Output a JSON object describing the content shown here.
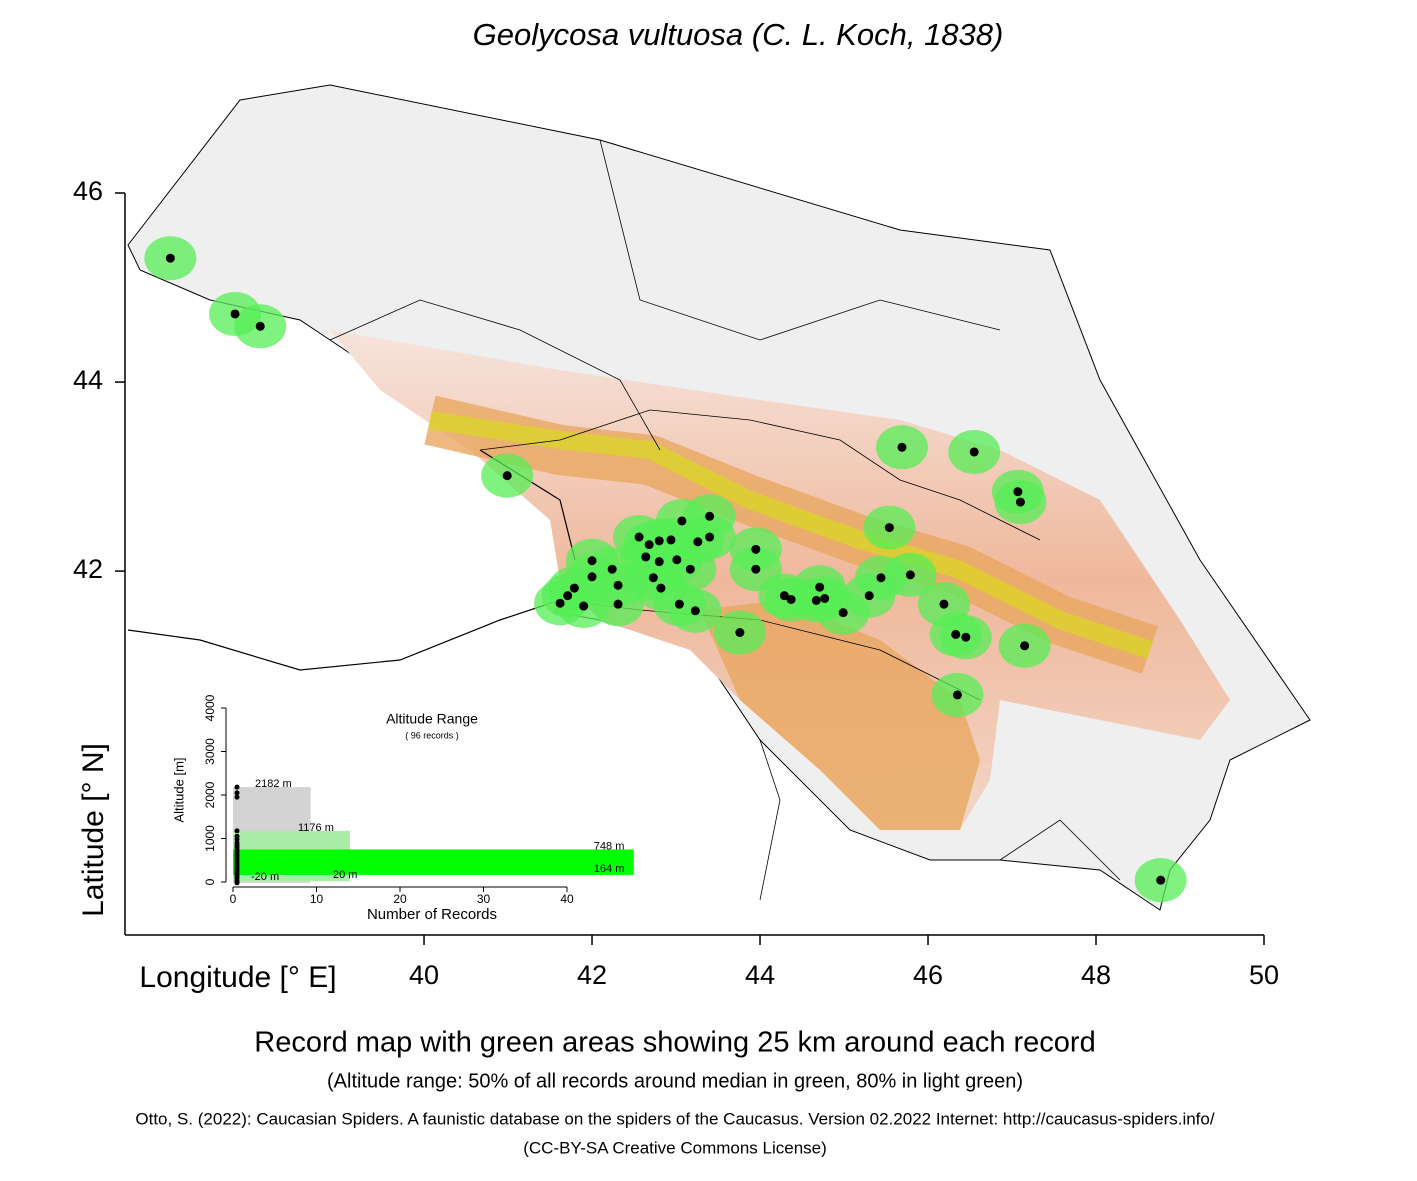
{
  "chart_data": [
    {
      "type": "scatter",
      "title": "Geolycosa vultuosa (C. L. Koch, 1838)",
      "x_label": "Longitude [° E]",
      "y_label": "Latitude [° N]",
      "caption": "Record map with green areas showing 25 km around each record",
      "subcaption": "(Altitude range: 50% of all records around median in green, 80% in light green)",
      "credit": "Otto, S. (2022): Caucasian Spiders. A faunistic database on the spiders of the Caucasus. Version 02.2022 Internet: http://caucasus-spiders.info/",
      "license": "(CC-BY-SA Creative Commons License)",
      "xlim": [
        36.44,
        50
      ],
      "xticks": [
        40,
        42,
        44,
        46,
        48,
        50
      ],
      "ylim": [
        38.15,
        46
      ],
      "yticks": [
        42,
        44,
        46
      ],
      "color": "#000000",
      "buffer_color": "#55ee55",
      "x": [
        36.98,
        37.75,
        38.05,
        40.99,
        45.69,
        46.55,
        47.07,
        47.1,
        45.54,
        43.4,
        43.07,
        42.56,
        42.68,
        42.8,
        42.94,
        43.26,
        43.4,
        42.64,
        42.8,
        43.01,
        42.0,
        42.0,
        42.24,
        43.17,
        43.95,
        43.95,
        42.73,
        42.82,
        42.31,
        41.79,
        41.71,
        41.62,
        41.9,
        42.31,
        43.04,
        43.23,
        43.76,
        44.29,
        44.37,
        44.67,
        44.77,
        44.71,
        44.99,
        45.3,
        45.44,
        45.79,
        46.19,
        46.33,
        46.45,
        47.15,
        46.35,
        48.77
      ],
      "values": [
        45.31,
        44.72,
        44.59,
        43.01,
        43.31,
        43.26,
        42.84,
        42.73,
        42.46,
        42.58,
        42.53,
        42.36,
        42.28,
        42.32,
        42.33,
        42.31,
        42.36,
        42.15,
        42.1,
        42.12,
        42.11,
        41.94,
        42.02,
        42.02,
        42.23,
        42.02,
        41.93,
        41.82,
        41.85,
        41.82,
        41.74,
        41.66,
        41.63,
        41.65,
        41.65,
        41.58,
        41.35,
        41.74,
        41.7,
        41.69,
        41.71,
        41.83,
        41.56,
        41.74,
        41.93,
        41.96,
        41.65,
        41.33,
        41.3,
        41.21,
        40.69,
        38.73
      ]
    },
    {
      "type": "range",
      "title": "Altitude Range",
      "subtitle": "( 96 records )",
      "x_label": "Number of Records",
      "y_label": "Altitude [m]",
      "xlim": [
        0,
        40
      ],
      "xticks": [
        0,
        10,
        20,
        30,
        40
      ],
      "ylim": [
        0,
        4000
      ],
      "yticks": [
        0,
        1000,
        2000,
        3000,
        4000
      ],
      "bars": [
        {
          "low": -20,
          "high": 2182,
          "width": 9.3,
          "color": "#d3d3d3",
          "low_label": "-20  m",
          "high_label": "2182  m"
        },
        {
          "low": 20,
          "high": 1176,
          "width": 14,
          "color": "#a8eca8",
          "low_label": "20  m",
          "high_label": "1176  m"
        },
        {
          "low": 164,
          "high": 748,
          "width": 48,
          "color": "#00ff00",
          "low_label": "164  m",
          "high_label": "748  m"
        }
      ],
      "altitudes": [
        2182,
        2050,
        1950,
        1176,
        1050,
        980,
        900,
        850,
        800,
        748,
        700,
        650,
        600,
        550,
        500,
        450,
        400,
        350,
        300,
        250,
        200,
        164,
        120,
        80,
        20,
        -20
      ]
    }
  ]
}
